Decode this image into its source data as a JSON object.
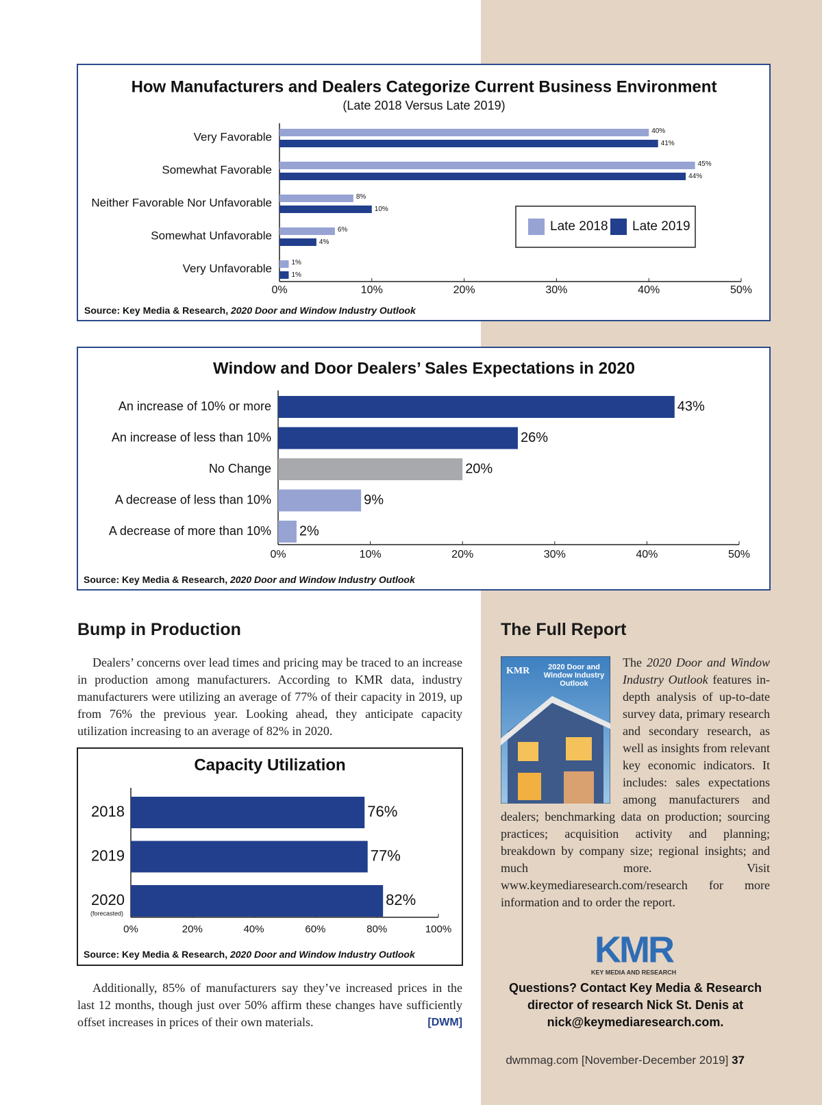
{
  "chart_data": [
    {
      "type": "bar",
      "orientation": "horizontal",
      "title": "How Manufacturers and Dealers Categorize Current Business Environment",
      "subtitle": "(Late 2018 Versus Late 2019)",
      "categories": [
        "Very Favorable",
        "Somewhat Favorable",
        "Neither Favorable Nor Unfavorable",
        "Somewhat Unfavorable",
        "Very Unfavorable"
      ],
      "series": [
        {
          "name": "Late 2018",
          "color": "#97a3d3",
          "values": [
            40,
            45,
            8,
            6,
            1
          ],
          "value_labels": [
            "40%",
            "45%",
            "8%",
            "6%",
            "1%"
          ]
        },
        {
          "name": "Late 2019",
          "color": "#213f8c",
          "values": [
            41,
            44,
            10,
            4,
            1
          ],
          "value_labels": [
            "41%",
            "44%",
            "10%",
            "4%",
            "1%"
          ]
        }
      ],
      "xlim": [
        0,
        50
      ],
      "xticks": [
        {
          "value": 0,
          "label": "0%"
        },
        {
          "value": 10,
          "label": "10%"
        },
        {
          "value": 20,
          "label": "20%"
        },
        {
          "value": 30,
          "label": "30%"
        },
        {
          "value": 40,
          "label": "40%"
        },
        {
          "value": 50,
          "label": "50%"
        }
      ],
      "legend": "right",
      "source": [
        "Source: Key Media & Research, ",
        "2020 Door and Window Industry Outlook"
      ]
    },
    {
      "type": "bar",
      "orientation": "horizontal",
      "title": "Window and Door Dealers’ Sales Expectations in 2020",
      "categories": [
        "An increase of 10% or more",
        "An increase of less than 10%",
        "No Change",
        "A decrease of less than 10%",
        "A decrease of more than 10%"
      ],
      "values": [
        43,
        26,
        20,
        9,
        2
      ],
      "value_labels": [
        "43%",
        "26%",
        "20%",
        "9%",
        "2%"
      ],
      "colors": [
        "#213f8c",
        "#213f8c",
        "#a7a9ac",
        "#97a3d3",
        "#97a3d3"
      ],
      "xlim": [
        0,
        50
      ],
      "xticks": [
        {
          "value": 0,
          "label": "0%"
        },
        {
          "value": 10,
          "label": "10%"
        },
        {
          "value": 20,
          "label": "20%"
        },
        {
          "value": 30,
          "label": "30%"
        },
        {
          "value": 40,
          "label": "40%"
        },
        {
          "value": 50,
          "label": "50%"
        }
      ],
      "source": [
        "Source: Key Media & Research, ",
        "2020 Door and Window Industry Outlook"
      ]
    },
    {
      "type": "bar",
      "orientation": "horizontal",
      "title": "Capacity Utilization",
      "categories": [
        "2018",
        "2019",
        "2020"
      ],
      "annotation": "(forecasted)",
      "values": [
        76,
        77,
        82
      ],
      "value_labels": [
        "76%",
        "77%",
        "82%"
      ],
      "color": "#213f8c",
      "xlim": [
        0,
        100
      ],
      "xticks": [
        {
          "value": 0,
          "label": "0%"
        },
        {
          "value": 20,
          "label": "20%"
        },
        {
          "value": 40,
          "label": "40%"
        },
        {
          "value": 60,
          "label": "60%"
        },
        {
          "value": 80,
          "label": "80%"
        },
        {
          "value": 100,
          "label": "100%"
        }
      ],
      "source": [
        "Source: Key Media & Research, ",
        "2020 Door and Window Industry Outlook"
      ]
    }
  ],
  "article": {
    "heading": "Bump in Production",
    "paragraphs": [
      "Dealers’ concerns over lead times and pricing may be traced to an increase in production among manufacturers. According to KMR data, industry manufacturers were utilizing an average of 77% of their capacity in 2019, up from 76% the previous year. Looking ahead, they anticipate capacity utilization increasing to an average of 82% in 2020.",
      "Additionally, 85% of manufacturers say they’ve increased prices in the last 12 months, though just over 50% affirm these changes have sufficiently offset increases in prices of their own materials."
    ],
    "sign": "[DWM]"
  },
  "sidebar": {
    "heading": "The Full Report",
    "cover": {
      "logo": "KMR",
      "title": "2020 Door and Window Industry Outlook"
    },
    "text": [
      "The ",
      "2020 Door and Window Industry Outlook",
      " features in-depth analysis of up-to-date survey data, primary research and secondary research, as well as insights from relevant key economic indicators. It includes: sales expectations among manufacturers and dealers; benchmarking data on production; sourcing practices; acquisition activity and planning; breakdown by company size; regional insights; and much more. Visit www.keymediaresearch.com/research for more information and to order the report."
    ],
    "logo": {
      "mark": "KMR",
      "name": "KEY MEDIA AND RESEARCH"
    },
    "contact": "Questions? Contact Key Media & Research director of research Nick St. Denis at nick@keymediaresearch.com."
  },
  "footer": {
    "site": "dwmmag.com",
    "issue": "[November-December 2019]",
    "page": "37"
  }
}
